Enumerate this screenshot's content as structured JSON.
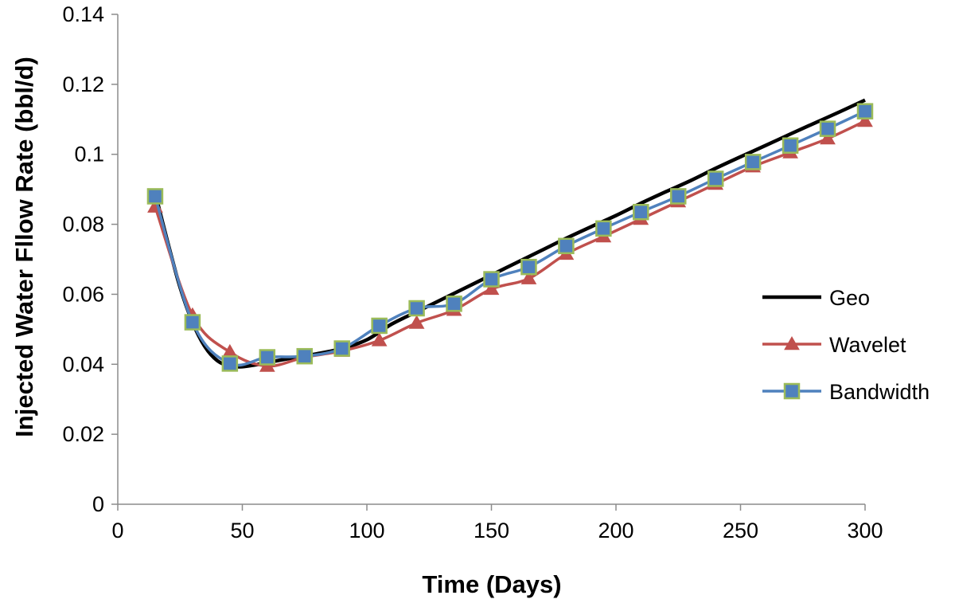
{
  "chart_data": {
    "type": "line",
    "title": "",
    "xlabel": "Time (Days)",
    "ylabel": "Injected Water Fllow Rate (bbl/d)",
    "xlim": [
      0,
      300
    ],
    "ylim": [
      0,
      0.14
    ],
    "x_ticks": [
      0,
      50,
      100,
      150,
      200,
      250,
      300
    ],
    "x_tick_labels": [
      "0",
      "50",
      "100",
      "150",
      "200",
      "250",
      "300"
    ],
    "y_ticks": [
      0,
      0.02,
      0.04,
      0.06,
      0.08,
      0.1,
      0.12,
      0.14
    ],
    "y_tick_labels": [
      "0",
      "0.02",
      "0.04",
      "0.06",
      "0.08",
      "0.1",
      "0.12",
      "0.14"
    ],
    "grid": false,
    "legend_position": "right",
    "series": [
      {
        "name": "Geo",
        "color": "#000000",
        "marker": "none",
        "x": [
          15,
          20,
          25,
          30,
          35,
          40,
          45,
          50,
          55,
          60,
          70,
          80,
          90,
          100,
          110,
          120,
          130,
          140,
          150,
          160,
          170,
          180,
          190,
          200,
          210,
          220,
          230,
          240,
          250,
          260,
          270,
          280,
          290,
          300
        ],
        "y": [
          0.089,
          0.075,
          0.062,
          0.052,
          0.045,
          0.041,
          0.0395,
          0.0393,
          0.0398,
          0.0405,
          0.0418,
          0.043,
          0.0445,
          0.047,
          0.0515,
          0.055,
          0.0585,
          0.062,
          0.0655,
          0.069,
          0.0725,
          0.076,
          0.0793,
          0.0825,
          0.086,
          0.0893,
          0.0925,
          0.096,
          0.0993,
          0.1025,
          0.1058,
          0.109,
          0.1122,
          0.1155
        ]
      },
      {
        "name": "Wavelet",
        "color": "#C0504D",
        "marker": "triangle",
        "x": [
          15,
          30,
          45,
          60,
          75,
          90,
          105,
          120,
          135,
          150,
          165,
          180,
          195,
          210,
          225,
          240,
          255,
          270,
          285,
          300
        ],
        "y": [
          0.085,
          0.054,
          0.0435,
          0.0395,
          0.042,
          0.0438,
          0.0468,
          0.0518,
          0.0555,
          0.0615,
          0.0645,
          0.0715,
          0.0765,
          0.0815,
          0.0865,
          0.0915,
          0.0965,
          0.1005,
          0.1045,
          0.1095
        ]
      },
      {
        "name": "Bandwidth",
        "color": "#4F81BD",
        "marker": "square",
        "marker_edge": "#9BBB59",
        "x": [
          15,
          30,
          45,
          60,
          75,
          90,
          105,
          120,
          135,
          150,
          165,
          180,
          195,
          210,
          225,
          240,
          255,
          270,
          285,
          300
        ],
        "y": [
          0.088,
          0.052,
          0.0402,
          0.042,
          0.0423,
          0.0445,
          0.051,
          0.056,
          0.0573,
          0.0643,
          0.0678,
          0.0738,
          0.0788,
          0.0835,
          0.088,
          0.093,
          0.0978,
          0.1025,
          0.1073,
          0.1123
        ]
      }
    ]
  }
}
